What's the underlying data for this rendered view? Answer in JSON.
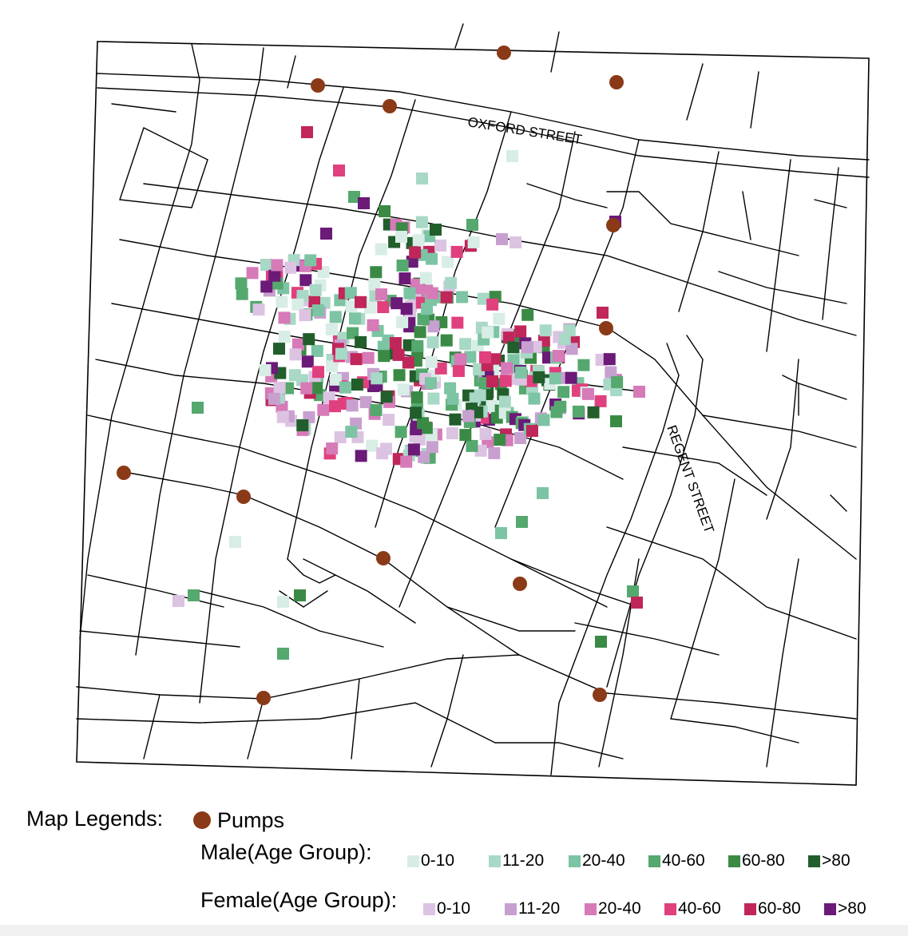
{
  "map": {
    "street_labels": {
      "oxford": "OXFORD STREET",
      "regent": "REGENT STREET"
    }
  },
  "legend": {
    "title": "Map Legends:",
    "pump_label": "Pumps",
    "pump_color": "#8a3a17",
    "male": {
      "title": "Male(Age Group):",
      "items": [
        {
          "label": "0-10",
          "color": "#d7ede6"
        },
        {
          "label": "11-20",
          "color": "#a8d8c6"
        },
        {
          "label": "20-40",
          "color": "#7cc4a3"
        },
        {
          "label": "40-60",
          "color": "#55a86e"
        },
        {
          "label": "60-80",
          "color": "#3a8a45"
        },
        {
          "label": ">80",
          "color": "#225e2b"
        }
      ]
    },
    "female": {
      "title": "Female(Age Group):",
      "items": [
        {
          "label": "0-10",
          "color": "#dcc3e2"
        },
        {
          "label": "11-20",
          "color": "#c8a0d0"
        },
        {
          "label": "20-40",
          "color": "#d67ab8"
        },
        {
          "label": "40-60",
          "color": "#e0407e"
        },
        {
          "label": "60-80",
          "color": "#c0265a"
        },
        {
          "label": ">80",
          "color": "#6b1a78"
        }
      ]
    }
  }
}
